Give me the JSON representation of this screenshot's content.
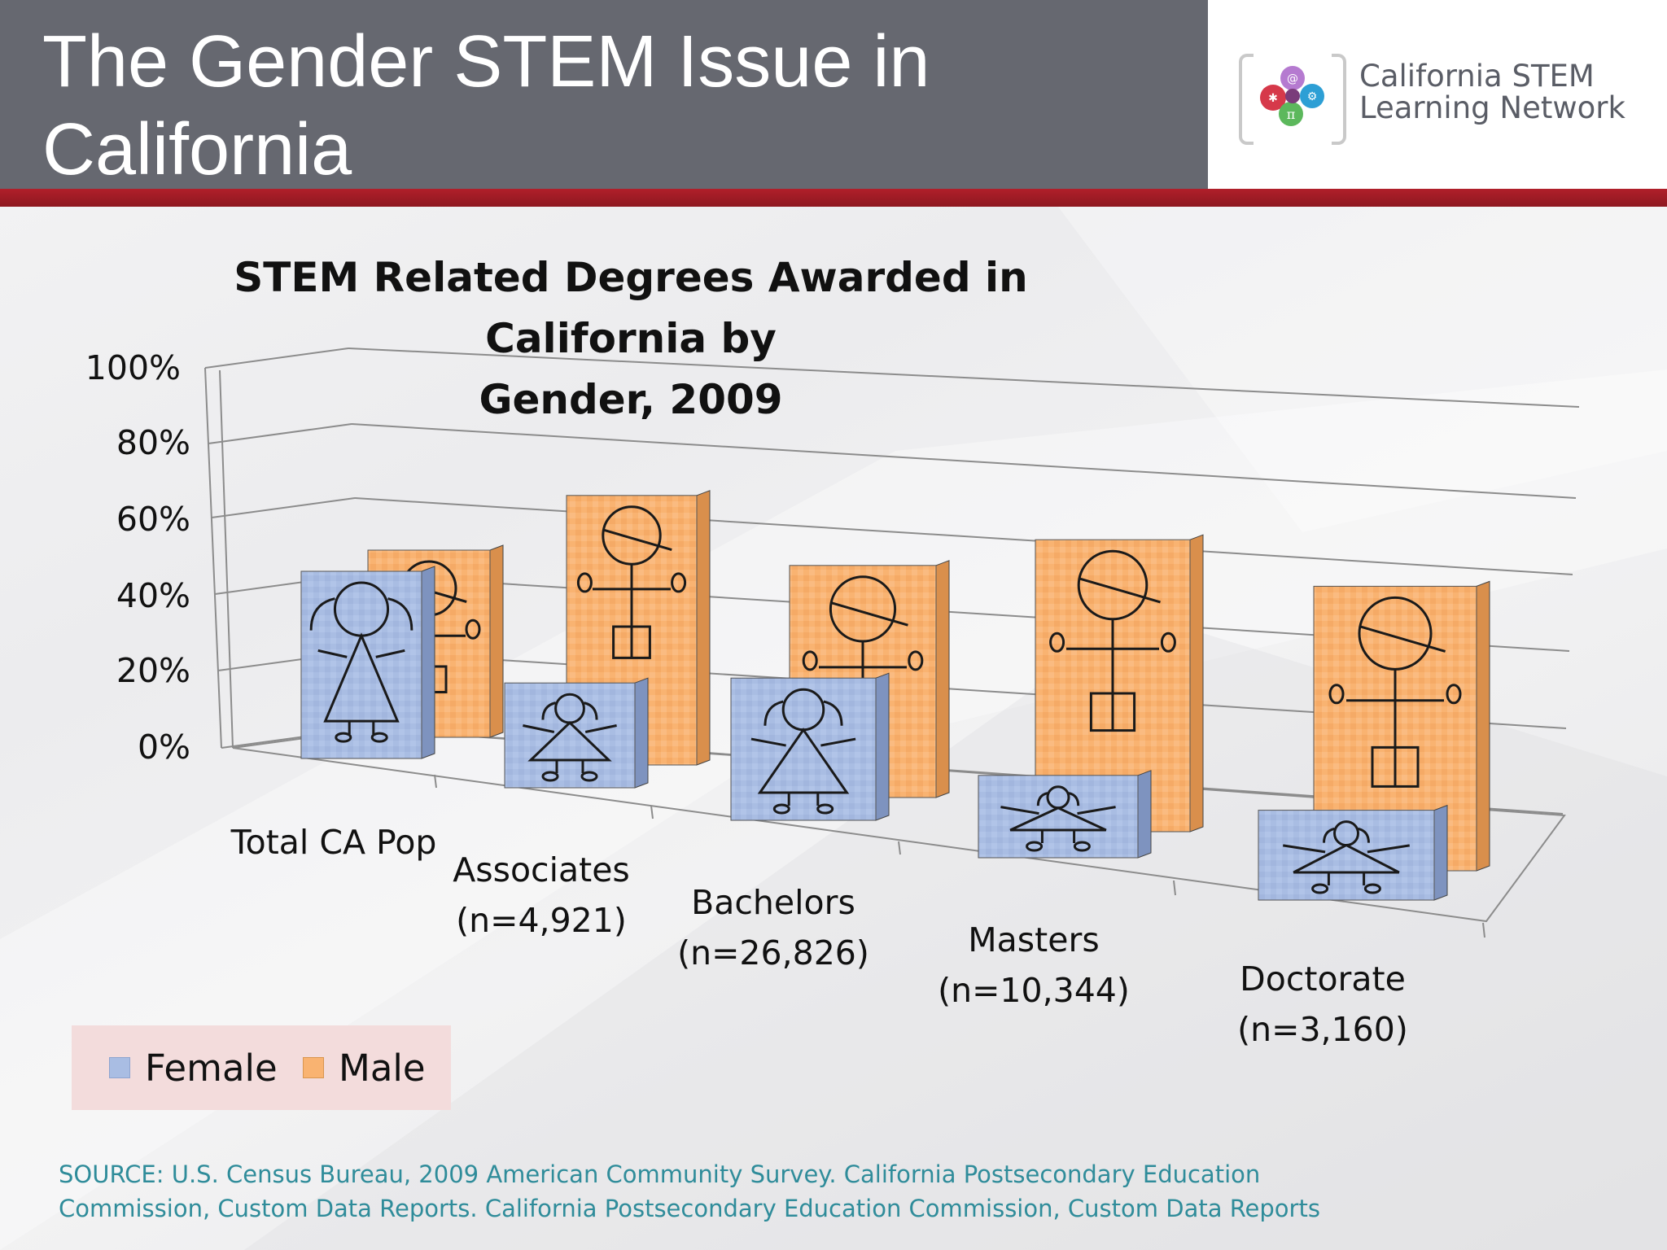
{
  "header": {
    "title": "The Gender STEM Issue in\nCalifornia"
  },
  "logo": {
    "line1": "California STEM",
    "line2": "Learning Network",
    "icon": "california-stem-logo-icon"
  },
  "colors": {
    "header_bg": "#666870",
    "accent_red": "#9e1c24",
    "female": "#a9bde3",
    "male": "#f9b371",
    "source_text": "#2f8c9a"
  },
  "chart_data": {
    "type": "bar",
    "title": "STEM Related Degrees Awarded in California by Gender, 2009",
    "categories": [
      "Total CA Pop",
      "Associates (n=4,921)",
      "Bachelors (n=26,826)",
      "Masters (n=10,344)",
      "Doctorate (n=3,160)"
    ],
    "series": [
      {
        "name": "Female",
        "values": [
          50,
          28,
          38,
          22,
          24
        ],
        "icon": "girl-figure-icon"
      },
      {
        "name": "Male",
        "values": [
          50,
          72,
          62,
          78,
          76
        ],
        "icon": "boy-figure-icon"
      }
    ],
    "yticks": [
      "0%",
      "20%",
      "40%",
      "60%",
      "80%",
      "100%"
    ],
    "ylim": [
      0,
      100
    ],
    "grid": true,
    "three_d": true,
    "legend": [
      "Female",
      "Male"
    ],
    "legend_position": "bottom-left"
  },
  "chart_text": {
    "title_line1": "STEM Related Degrees Awarded in California by",
    "title_line2": "Gender, 2009",
    "cat_lines": [
      [
        "Total CA Pop",
        ""
      ],
      [
        "Associates",
        "(n=4,921)"
      ],
      [
        "Bachelors",
        "(n=26,826)"
      ],
      [
        "Masters",
        "(n=10,344)"
      ],
      [
        "Doctorate",
        "(n=3,160)"
      ]
    ]
  },
  "source": {
    "line1": "SOURCE:  U.S. Census Bureau, 2009 American Community Survey.  California Postsecondary Education",
    "line2": "Commission, Custom Data Reports. California Postsecondary Education Commission, Custom Data Reports"
  }
}
